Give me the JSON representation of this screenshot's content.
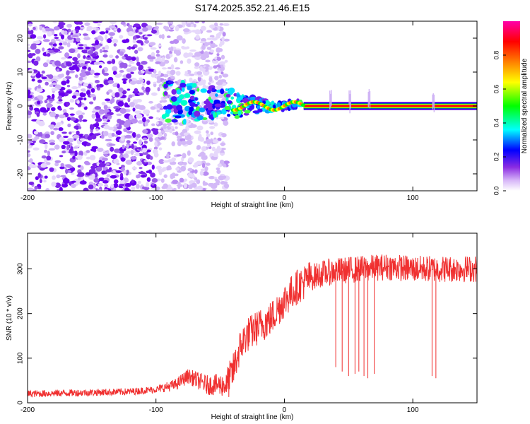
{
  "title": "S174.2025.352.21.46.E15",
  "chart_data": [
    {
      "type": "heatmap",
      "name": "spectrogram",
      "xlabel": "Height of straight line (km)",
      "ylabel": "Frequency (Hz)",
      "xlim": [
        -200,
        150
      ],
      "ylim": [
        -25,
        25
      ],
      "xticks": [
        -200,
        -100,
        0,
        100
      ],
      "yticks": [
        -20,
        -10,
        0,
        10,
        20
      ],
      "xtick_labels": [
        "-200",
        "-100",
        "0",
        "100"
      ],
      "ytick_labels": [
        "-20",
        "-10",
        "0",
        "10",
        "20"
      ],
      "colorbar": {
        "label": "Normalized spectral amplitude",
        "range": [
          0,
          1
        ],
        "ticks": [
          0.0,
          0.2,
          0.4,
          0.6,
          0.8
        ],
        "tick_labels": [
          "0.0",
          "0.2",
          "0.4",
          "0.6",
          "0.8"
        ],
        "colors": [
          "#ffffff",
          "#8a2be2",
          "#0000ff",
          "#00ffff",
          "#00ff00",
          "#ffff00",
          "#ff7f00",
          "#ff0000",
          "#ff00aa"
        ]
      },
      "segments": [
        {
          "name": "noise",
          "x_range": [
            -200,
            -45
          ],
          "freq_range": [
            -25,
            25
          ],
          "amplitude": 0.1
        },
        {
          "name": "transition",
          "x_range": [
            -95,
            15
          ],
          "freq_range": [
            -7,
            8
          ],
          "amplitude": 0.35
        },
        {
          "name": "signal",
          "x_range": [
            15,
            150
          ],
          "freq": 0,
          "amplitude": 0.95
        }
      ]
    },
    {
      "type": "line",
      "name": "snr",
      "xlabel": "Height of straight line (km)",
      "ylabel": "SNR (10 * v/v)",
      "xlim": [
        -200,
        150
      ],
      "ylim": [
        0,
        380
      ],
      "xticks": [
        -200,
        -100,
        0,
        100
      ],
      "yticks": [
        0,
        100,
        200,
        300
      ],
      "xtick_labels": [
        "-200",
        "-100",
        "0",
        "100"
      ],
      "ytick_labels": [
        "0",
        "100",
        "200",
        "300"
      ],
      "color": "#f03030",
      "trend": {
        "x": [
          -200,
          -120,
          -100,
          -85,
          -75,
          -60,
          -45,
          -40,
          -35,
          -30,
          -20,
          -10,
          0,
          10,
          20,
          30,
          40,
          60,
          80,
          100,
          120,
          150
        ],
        "y": [
          20,
          25,
          30,
          40,
          60,
          40,
          40,
          70,
          120,
          150,
          170,
          190,
          230,
          260,
          280,
          290,
          295,
          300,
          305,
          300,
          300,
          300
        ]
      },
      "dips": [
        {
          "x": 40,
          "y": 80
        },
        {
          "x": 45,
          "y": 70
        },
        {
          "x": 50,
          "y": 60
        },
        {
          "x": 55,
          "y": 65
        },
        {
          "x": 58,
          "y": 70
        },
        {
          "x": 62,
          "y": 60
        },
        {
          "x": 65,
          "y": 55
        },
        {
          "x": 70,
          "y": 65
        },
        {
          "x": 115,
          "y": 60
        },
        {
          "x": 118,
          "y": 55
        }
      ]
    }
  ]
}
